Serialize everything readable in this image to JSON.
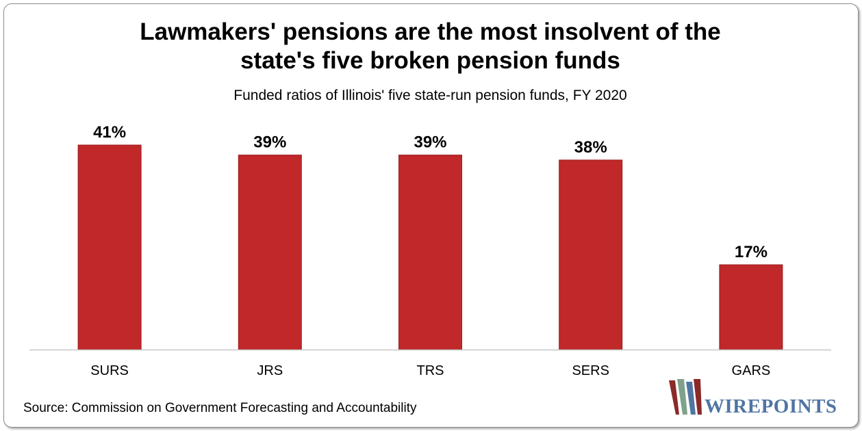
{
  "chart_data": {
    "type": "bar",
    "title_lines": [
      "Lawmakers' pensions are the most insolvent of the",
      "state's five broken pension funds"
    ],
    "subtitle": "Funded ratios of Illinois' five state-run pension funds, FY 2020",
    "categories": [
      "SURS",
      "JRS",
      "TRS",
      "SERS",
      "GARS"
    ],
    "values": [
      41,
      39,
      39,
      38,
      17
    ],
    "data_labels": [
      "41%",
      "39%",
      "39%",
      "38%",
      "17%"
    ],
    "ylim": [
      0,
      41
    ],
    "grid": false,
    "legend": "none",
    "bar_color": "#c0282a",
    "bar_edge_color": "#9c1c1e"
  },
  "source": "Source: Commission on Government Forecasting and Accountability",
  "logo": {
    "text": "WIREPOINTS",
    "colors": [
      "#8b2a2a",
      "#7fa28a",
      "#4f75a3"
    ]
  }
}
